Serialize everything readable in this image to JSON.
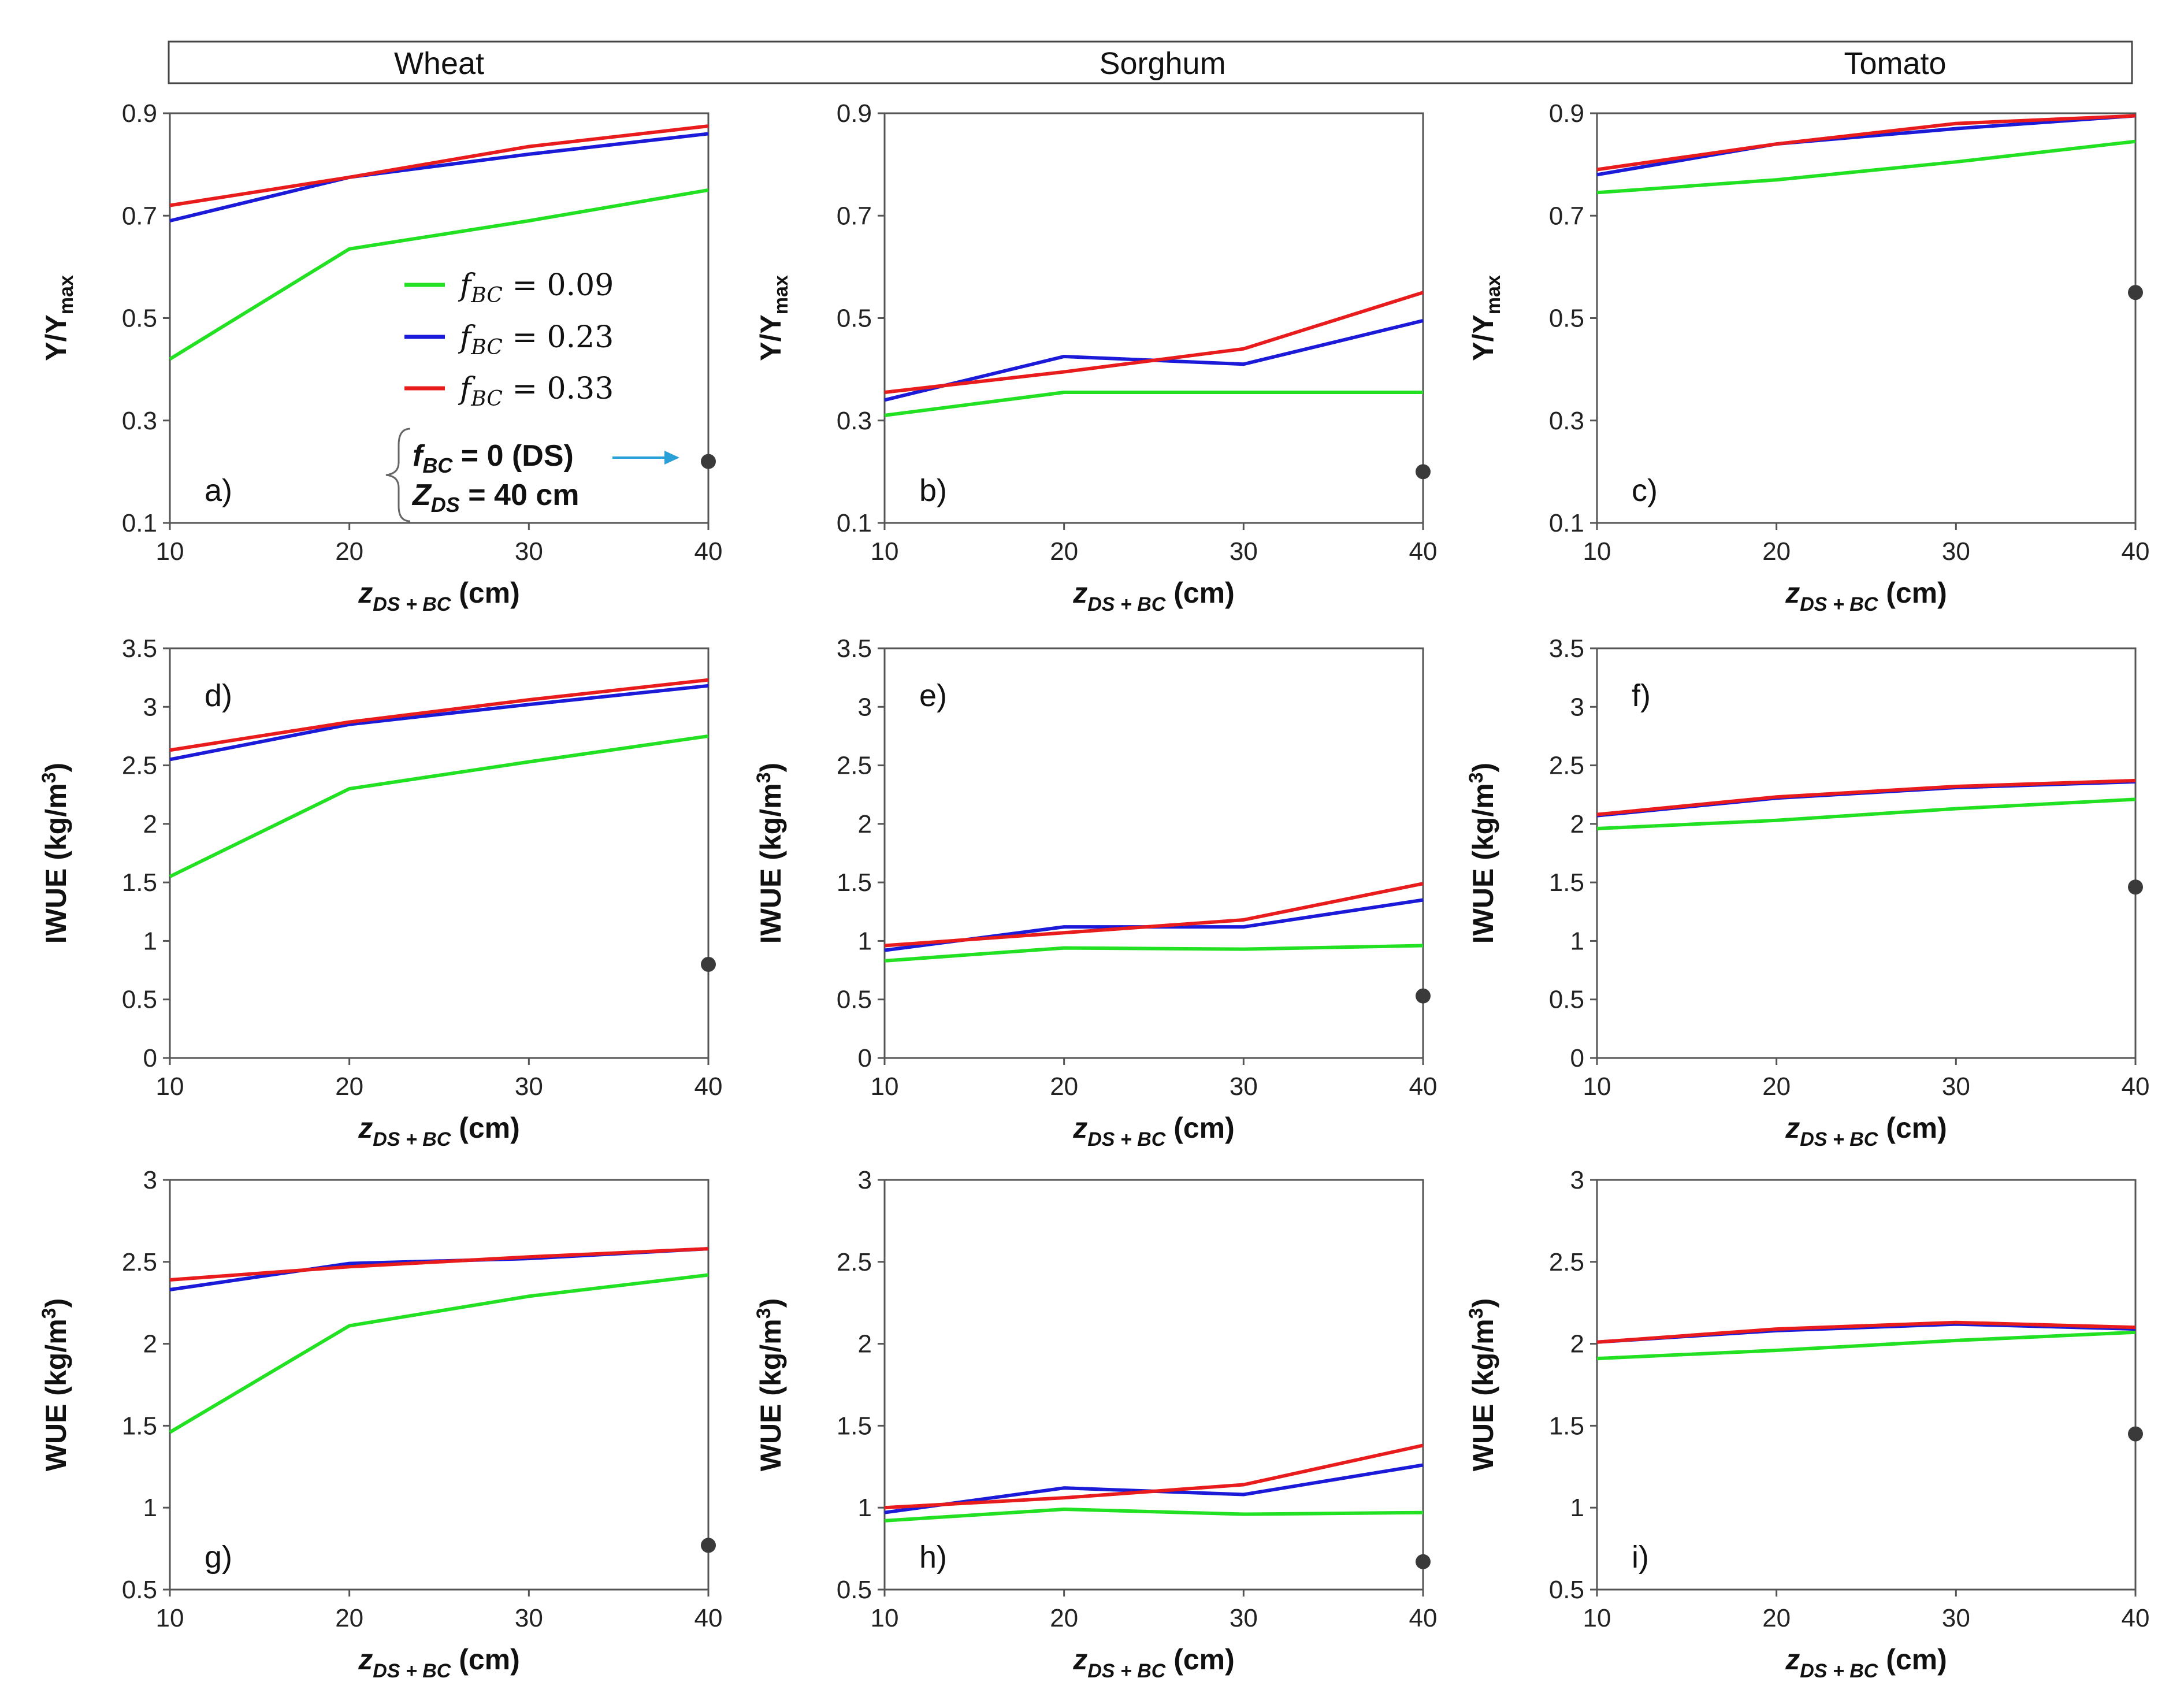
{
  "crops": [
    "Wheat",
    "Sorghum",
    "Tomato"
  ],
  "colors": {
    "green": "#22e022",
    "blue": "#1a1ad8",
    "red": "#e81c1c",
    "marker": "#3a3a3a",
    "arrow": "#2a9fd8"
  },
  "legend": {
    "items": [
      {
        "sym": "f",
        "sub": "BC",
        "rest": " = 0.09",
        "color": "#22e022"
      },
      {
        "sym": "f",
        "sub": "BC",
        "rest": " = 0.23",
        "color": "#1a1ad8"
      },
      {
        "sym": "f",
        "sub": "BC",
        "rest": " = 0.33",
        "color": "#e81c1c"
      }
    ],
    "ds_line1": {
      "sym": "f",
      "sub": "BC",
      "rest": " = 0 (DS)"
    },
    "ds_line2": {
      "sym": "Z",
      "sub": "DS",
      "rest": " = 40 cm"
    }
  },
  "chart_data": [
    {
      "id": "a",
      "label": "a)",
      "type": "line",
      "ylabel": "Y/Ymax",
      "ylim": [
        0.1,
        0.9
      ],
      "yticks": [
        0.1,
        0.3,
        0.5,
        0.7,
        0.9
      ],
      "ytick_labels": [
        "0.1",
        "0.3",
        "0.5",
        "0.7",
        "0.9"
      ],
      "xlabel": "zDS+BC (cm)",
      "x": [
        10,
        20,
        30,
        40
      ],
      "xtick_labels": [
        "10",
        "20",
        "30",
        "40"
      ],
      "series": [
        {
          "name": "fBC = 0.09",
          "values": [
            0.42,
            0.635,
            0.69,
            0.75
          ]
        },
        {
          "name": "fBC = 0.23",
          "values": [
            0.69,
            0.775,
            0.82,
            0.86
          ]
        },
        {
          "name": "fBC = 0.33",
          "values": [
            0.72,
            0.775,
            0.835,
            0.875
          ]
        }
      ],
      "ds_point": [
        40,
        0.22
      ]
    },
    {
      "id": "b",
      "label": "b)",
      "type": "line",
      "ylabel": "Y/Ymax",
      "ylim": [
        0.1,
        0.9
      ],
      "yticks": [
        0.1,
        0.3,
        0.5,
        0.7,
        0.9
      ],
      "ytick_labels": [
        "0.1",
        "0.3",
        "0.5",
        "0.7",
        "0.9"
      ],
      "xlabel": "zDS+BC (cm)",
      "x": [
        10,
        20,
        30,
        40
      ],
      "xtick_labels": [
        "10",
        "20",
        "30",
        "40"
      ],
      "series": [
        {
          "name": "fBC = 0.09",
          "values": [
            0.31,
            0.355,
            0.355,
            0.355
          ]
        },
        {
          "name": "fBC = 0.23",
          "values": [
            0.34,
            0.425,
            0.41,
            0.495
          ]
        },
        {
          "name": "fBC = 0.33",
          "values": [
            0.355,
            0.395,
            0.44,
            0.55
          ]
        }
      ],
      "ds_point": [
        40,
        0.2
      ]
    },
    {
      "id": "c",
      "label": "c)",
      "type": "line",
      "ylabel": "Y/Ymax",
      "ylim": [
        0.1,
        0.9
      ],
      "yticks": [
        0.1,
        0.3,
        0.5,
        0.7,
        0.9
      ],
      "ytick_labels": [
        "0.1",
        "0.3",
        "0.5",
        "0.7",
        "0.9"
      ],
      "xlabel": "zDS+BC (cm)",
      "x": [
        10,
        20,
        30,
        40
      ],
      "xtick_labels": [
        "10",
        "20",
        "30",
        "40"
      ],
      "series": [
        {
          "name": "fBC = 0.09",
          "values": [
            0.745,
            0.77,
            0.805,
            0.845
          ]
        },
        {
          "name": "fBC = 0.23",
          "values": [
            0.78,
            0.84,
            0.87,
            0.895
          ]
        },
        {
          "name": "fBC = 0.33",
          "values": [
            0.79,
            0.84,
            0.88,
            0.895
          ]
        }
      ],
      "ds_point": [
        40,
        0.55
      ]
    },
    {
      "id": "d",
      "label": "d)",
      "type": "line",
      "ylabel": "IWUE (kg/m3)",
      "ylim": [
        0,
        3.5
      ],
      "yticks": [
        0,
        0.5,
        1,
        1.5,
        2,
        2.5,
        3,
        3.5
      ],
      "ytick_labels": [
        "0",
        "0.5",
        "1",
        "1.5",
        "2",
        "2.5",
        "3",
        "3.5"
      ],
      "xlabel": "zDS+BC (cm)",
      "x": [
        10,
        20,
        30,
        40
      ],
      "xtick_labels": [
        "10",
        "20",
        "30",
        "40"
      ],
      "series": [
        {
          "name": "fBC = 0.09",
          "values": [
            1.55,
            2.3,
            2.53,
            2.75
          ]
        },
        {
          "name": "fBC = 0.23",
          "values": [
            2.55,
            2.85,
            3.02,
            3.18
          ]
        },
        {
          "name": "fBC = 0.33",
          "values": [
            2.63,
            2.87,
            3.06,
            3.23
          ]
        }
      ],
      "ds_point": [
        40,
        0.8
      ]
    },
    {
      "id": "e",
      "label": "e)",
      "type": "line",
      "ylabel": "IWUE (kg/m3)",
      "ylim": [
        0,
        3.5
      ],
      "yticks": [
        0,
        0.5,
        1,
        1.5,
        2,
        2.5,
        3,
        3.5
      ],
      "ytick_labels": [
        "0",
        "0.5",
        "1",
        "1.5",
        "2",
        "2.5",
        "3",
        "3.5"
      ],
      "xlabel": "zDS+BC (cm)",
      "x": [
        10,
        20,
        30,
        40
      ],
      "xtick_labels": [
        "10",
        "20",
        "30",
        "40"
      ],
      "series": [
        {
          "name": "fBC = 0.09",
          "values": [
            0.83,
            0.94,
            0.93,
            0.96
          ]
        },
        {
          "name": "fBC = 0.23",
          "values": [
            0.92,
            1.12,
            1.12,
            1.35
          ]
        },
        {
          "name": "fBC = 0.33",
          "values": [
            0.96,
            1.07,
            1.18,
            1.49
          ]
        }
      ],
      "ds_point": [
        40,
        0.53
      ]
    },
    {
      "id": "f",
      "label": "f)",
      "type": "line",
      "ylabel": "IWUE (kg/m3)",
      "ylim": [
        0,
        3.5
      ],
      "yticks": [
        0,
        0.5,
        1,
        1.5,
        2,
        2.5,
        3,
        3.5
      ],
      "ytick_labels": [
        "0",
        "0.5",
        "1",
        "1.5",
        "2",
        "2.5",
        "3",
        "3.5"
      ],
      "xlabel": "zDS+BC (cm)",
      "x": [
        10,
        20,
        30,
        40
      ],
      "xtick_labels": [
        "10",
        "20",
        "30",
        "40"
      ],
      "series": [
        {
          "name": "fBC = 0.09",
          "values": [
            1.96,
            2.03,
            2.13,
            2.21
          ]
        },
        {
          "name": "fBC = 0.23",
          "values": [
            2.07,
            2.22,
            2.31,
            2.36
          ]
        },
        {
          "name": "fBC = 0.33",
          "values": [
            2.08,
            2.23,
            2.32,
            2.37
          ]
        }
      ],
      "ds_point": [
        40,
        1.46
      ]
    },
    {
      "id": "g",
      "label": "g)",
      "type": "line",
      "ylabel": "WUE (kg/m3)",
      "ylim": [
        0.5,
        3
      ],
      "yticks": [
        0.5,
        1,
        1.5,
        2,
        2.5,
        3
      ],
      "ytick_labels": [
        "0.5",
        "1",
        "1.5",
        "2",
        "2.5",
        "3"
      ],
      "xlabel": "zDS+BC (cm)",
      "x": [
        10,
        20,
        30,
        40
      ],
      "xtick_labels": [
        "10",
        "20",
        "30",
        "40"
      ],
      "series": [
        {
          "name": "fBC = 0.09",
          "values": [
            1.46,
            2.11,
            2.29,
            2.42
          ]
        },
        {
          "name": "fBC = 0.23",
          "values": [
            2.33,
            2.49,
            2.52,
            2.58
          ]
        },
        {
          "name": "fBC = 0.33",
          "values": [
            2.39,
            2.47,
            2.53,
            2.58
          ]
        }
      ],
      "ds_point": [
        40,
        0.77
      ]
    },
    {
      "id": "h",
      "label": "h)",
      "type": "line",
      "ylabel": "WUE (kg/m3)",
      "ylim": [
        0.5,
        3
      ],
      "yticks": [
        0.5,
        1,
        1.5,
        2,
        2.5,
        3
      ],
      "ytick_labels": [
        "0.5",
        "1",
        "1.5",
        "2",
        "2.5",
        "3"
      ],
      "xlabel": "zDS+BC (cm)",
      "x": [
        10,
        20,
        30,
        40
      ],
      "xtick_labels": [
        "10",
        "20",
        "30",
        "40"
      ],
      "series": [
        {
          "name": "fBC = 0.09",
          "values": [
            0.92,
            0.99,
            0.96,
            0.97
          ]
        },
        {
          "name": "fBC = 0.23",
          "values": [
            0.97,
            1.12,
            1.08,
            1.26
          ]
        },
        {
          "name": "fBC = 0.33",
          "values": [
            1.0,
            1.06,
            1.14,
            1.38
          ]
        }
      ],
      "ds_point": [
        40,
        0.67
      ]
    },
    {
      "id": "i",
      "label": "i)",
      "type": "line",
      "ylabel": "WUE (kg/m3)",
      "ylim": [
        0.5,
        3
      ],
      "yticks": [
        0.5,
        1,
        1.5,
        2,
        2.5,
        3
      ],
      "ytick_labels": [
        "0.5",
        "1",
        "1.5",
        "2",
        "2.5",
        "3"
      ],
      "xlabel": "zDS+BC (cm)",
      "x": [
        10,
        20,
        30,
        40
      ],
      "xtick_labels": [
        "10",
        "20",
        "30",
        "40"
      ],
      "series": [
        {
          "name": "fBC = 0.09",
          "values": [
            1.91,
            1.96,
            2.02,
            2.07
          ]
        },
        {
          "name": "fBC = 0.23",
          "values": [
            2.01,
            2.08,
            2.12,
            2.09
          ]
        },
        {
          "name": "fBC = 0.33",
          "values": [
            2.01,
            2.09,
            2.13,
            2.1
          ]
        }
      ],
      "ds_point": [
        40,
        1.45
      ]
    }
  ]
}
